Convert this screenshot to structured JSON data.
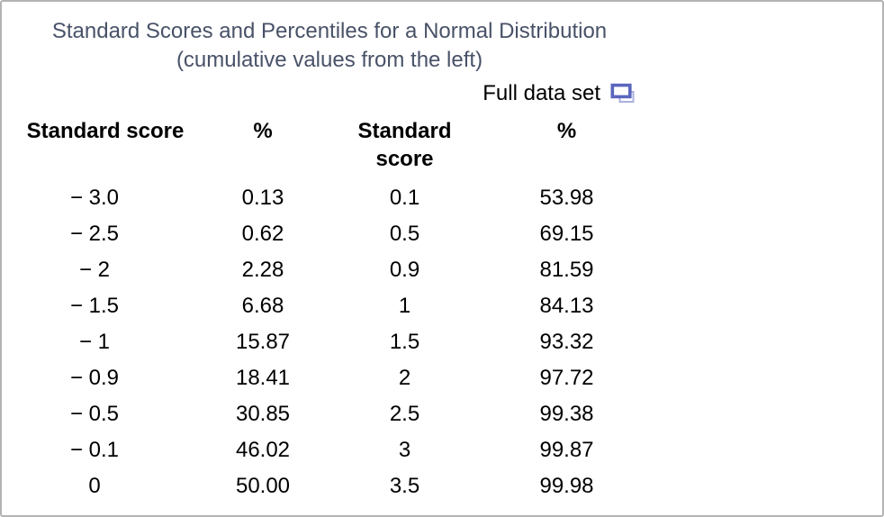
{
  "chart_data": {
    "type": "table",
    "title": "Standard Scores and Percentiles for a Normal Distribution",
    "subtitle": "(cumulative values from the left)",
    "columns": [
      "Standard score",
      "%",
      "Standard score",
      "%"
    ],
    "rows": [
      [
        "− 3.0",
        "0.13",
        "0.1",
        "53.98"
      ],
      [
        "− 2.5",
        "0.62",
        "0.5",
        "69.15"
      ],
      [
        "− 2",
        "2.28",
        "0.9",
        "81.59"
      ],
      [
        "− 1.5",
        "6.68",
        "1",
        "84.13"
      ],
      [
        "− 1",
        "15.87",
        "1.5",
        "93.32"
      ],
      [
        "− 0.9",
        "18.41",
        "2",
        "97.72"
      ],
      [
        "− 0.5",
        "30.85",
        "2.5",
        "99.38"
      ],
      [
        "− 0.1",
        "46.02",
        "3",
        "99.87"
      ],
      [
        "0",
        "50.00",
        "3.5",
        "99.98"
      ]
    ],
    "score_percentile_pairs": [
      [
        -3.0,
        0.13
      ],
      [
        -2.5,
        0.62
      ],
      [
        -2,
        2.28
      ],
      [
        -1.5,
        6.68
      ],
      [
        -1,
        15.87
      ],
      [
        -0.9,
        18.41
      ],
      [
        -0.5,
        30.85
      ],
      [
        -0.1,
        46.02
      ],
      [
        0,
        50.0
      ],
      [
        0.1,
        53.98
      ],
      [
        0.5,
        69.15
      ],
      [
        0.9,
        81.59
      ],
      [
        1,
        84.13
      ],
      [
        1.5,
        93.32
      ],
      [
        2,
        97.72
      ],
      [
        2.5,
        99.38
      ],
      [
        3,
        99.87
      ],
      [
        3.5,
        99.98
      ]
    ]
  },
  "controls": {
    "full_data_set_label": "Full data set",
    "full_data_set_icon": "duplicate-window-icon"
  },
  "colors": {
    "title_text": "#485268",
    "frame_border": "#b4b4b4",
    "icon_front_stroke": "#5b66bd",
    "icon_back_stroke": "#abb1de",
    "body_text": "#000000"
  }
}
